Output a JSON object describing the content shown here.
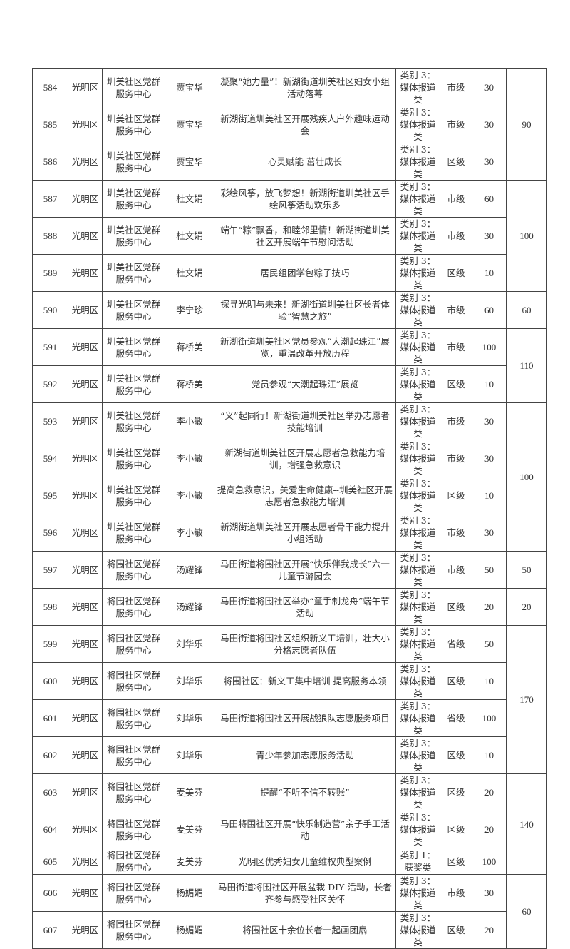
{
  "groups": [
    {
      "total": "90",
      "rows": [
        {
          "no": "584",
          "district": "光明区",
          "center": "圳美社区党群服务中心",
          "person": "贾宝华",
          "title": "凝聚“她力量”！新湖街道圳美社区妇女小组活动落幕",
          "category": "类别 3：媒体报道类",
          "level": "市级",
          "score": "30"
        },
        {
          "no": "585",
          "district": "光明区",
          "center": "圳美社区党群服务中心",
          "person": "贾宝华",
          "title": "新湖街道圳美社区开展残疾人户外趣味运动会",
          "category": "类别 3：媒体报道类",
          "level": "市级",
          "score": "30"
        },
        {
          "no": "586",
          "district": "光明区",
          "center": "圳美社区党群服务中心",
          "person": "贾宝华",
          "title": "心灵赋能 茁壮成长",
          "category": "类别 3：媒体报道类",
          "level": "区级",
          "score": "30"
        }
      ]
    },
    {
      "total": "100",
      "rows": [
        {
          "no": "587",
          "district": "光明区",
          "center": "圳美社区党群服务中心",
          "person": "杜文娟",
          "title": "彩绘风筝，放飞梦想！新湖街道圳美社区手绘风筝活动欢乐多",
          "category": "类别 3：媒体报道类",
          "level": "市级",
          "score": "60"
        },
        {
          "no": "588",
          "district": "光明区",
          "center": "圳美社区党群服务中心",
          "person": "杜文娟",
          "title": "端午“粽”飘香，和睦邻里情！新湖街道圳美社区开展端午节慰问活动",
          "category": "类别 3：媒体报道类",
          "level": "市级",
          "score": "30"
        },
        {
          "no": "589",
          "district": "光明区",
          "center": "圳美社区党群服务中心",
          "person": "杜文娟",
          "title": "居民组团学包粽子技巧",
          "category": "类别 3：媒体报道类",
          "level": "区级",
          "score": "10"
        }
      ]
    },
    {
      "total": "60",
      "rows": [
        {
          "no": "590",
          "district": "光明区",
          "center": "圳美社区党群服务中心",
          "person": "李宁珍",
          "title": "探寻光明与未来！新湖街道圳美社区长者体验“智慧之旅”",
          "category": "类别 3：媒体报道类",
          "level": "市级",
          "score": "60"
        }
      ]
    },
    {
      "total": "110",
      "rows": [
        {
          "no": "591",
          "district": "光明区",
          "center": "圳美社区党群服务中心",
          "person": "蒋桥美",
          "title": "新湖街道圳美社区党员参观“大潮起珠江”展览，重温改革开放历程",
          "category": "类别 3：媒体报道类",
          "level": "市级",
          "score": "100"
        },
        {
          "no": "592",
          "district": "光明区",
          "center": "圳美社区党群服务中心",
          "person": "蒋桥美",
          "title": "党员参观“大潮起珠江”展览",
          "category": "类别 3：媒体报道类",
          "level": "区级",
          "score": "10"
        }
      ]
    },
    {
      "total": "100",
      "rows": [
        {
          "no": "593",
          "district": "光明区",
          "center": "圳美社区党群服务中心",
          "person": "李小敏",
          "title": "“义”起同行！新湖街道圳美社区举办志愿者技能培训",
          "category": "类别 3：媒体报道类",
          "level": "市级",
          "score": "30"
        },
        {
          "no": "594",
          "district": "光明区",
          "center": "圳美社区党群服务中心",
          "person": "李小敏",
          "title": "新湖街道圳美社区开展志愿者急救能力培训，增强急救意识",
          "category": "类别 3：媒体报道类",
          "level": "市级",
          "score": "30"
        },
        {
          "no": "595",
          "district": "光明区",
          "center": "圳美社区党群服务中心",
          "person": "李小敏",
          "title": "提高急救意识，关爱生命健康--圳美社区开展志愿者急救能力培训",
          "category": "类别 3：媒体报道类",
          "level": "区级",
          "score": "10"
        },
        {
          "no": "596",
          "district": "光明区",
          "center": "圳美社区党群服务中心",
          "person": "李小敏",
          "title": "新湖街道圳美社区开展志愿者骨干能力提升小组活动",
          "category": "类别 3：媒体报道类",
          "level": "市级",
          "score": "30"
        }
      ]
    },
    {
      "total": "50",
      "rows": [
        {
          "no": "597",
          "district": "光明区",
          "center": "将围社区党群服务中心",
          "person": "汤耀锋",
          "title": "马田街道将围社区开展“快乐伴我成长”六一儿童节游园会",
          "category": "类别 3：媒体报道类",
          "level": "市级",
          "score": "50"
        }
      ]
    },
    {
      "total": "20",
      "rows": [
        {
          "no": "598",
          "district": "光明区",
          "center": "将围社区党群服务中心",
          "person": "汤耀锋",
          "title": "马田街道将围社区举办“童手制龙舟”端午节活动",
          "category": "类别 3：媒体报道类",
          "level": "区级",
          "score": "20"
        }
      ]
    },
    {
      "total": "170",
      "rows": [
        {
          "no": "599",
          "district": "光明区",
          "center": "将围社区党群服务中心",
          "person": "刘华乐",
          "title": "马田街道将围社区组织新义工培训，壮大小分格志愿者队伍",
          "category": "类别 3：媒体报道类",
          "level": "省级",
          "score": "50"
        },
        {
          "no": "600",
          "district": "光明区",
          "center": "将围社区党群服务中心",
          "person": "刘华乐",
          "title": "将围社区：新义工集中培训 提高服务本领",
          "category": "类别 3：媒体报道类",
          "level": "区级",
          "score": "10"
        },
        {
          "no": "601",
          "district": "光明区",
          "center": "将围社区党群服务中心",
          "person": "刘华乐",
          "title": "马田街道将围社区开展战狼队志愿服务项目",
          "category": "类别 3：媒体报道类",
          "level": "省级",
          "score": "100"
        },
        {
          "no": "602",
          "district": "光明区",
          "center": "将围社区党群服务中心",
          "person": "刘华乐",
          "title": "青少年参加志愿服务活动",
          "category": "类别 3：媒体报道类",
          "level": "区级",
          "score": "10"
        }
      ]
    },
    {
      "total": "140",
      "rows": [
        {
          "no": "603",
          "district": "光明区",
          "center": "将围社区党群服务中心",
          "person": "麦美芬",
          "title": "提醒“不听不信不转账”",
          "category": "类别 3：媒体报道类",
          "level": "区级",
          "score": "20"
        },
        {
          "no": "604",
          "district": "光明区",
          "center": "将围社区党群服务中心",
          "person": "麦美芬",
          "title": "马田将围社区开展“快乐制造营”亲子手工活动",
          "category": "类别 3：媒体报道类",
          "level": "区级",
          "score": "20"
        },
        {
          "no": "605",
          "district": "光明区",
          "center": "将围社区党群服务中心",
          "person": "麦美芬",
          "title": "光明区优秀妇女儿童维权典型案例",
          "category": "类别 1：获奖类",
          "level": "区级",
          "score": "100"
        }
      ]
    },
    {
      "total": "60",
      "rows": [
        {
          "no": "606",
          "district": "光明区",
          "center": "将围社区党群服务中心",
          "person": "杨媚媚",
          "title": "马田街道将围社区开展盆栽 DIY 活动，长者齐参与感受社区关怀",
          "category": "类别 3：媒体报道类",
          "level": "市级",
          "score": "30"
        },
        {
          "no": "607",
          "district": "光明区",
          "center": "将围社区党群服务中心",
          "person": "杨媚媚",
          "title": "将围社区十余位长者一起画团扇",
          "category": "类别 3：媒体报道类",
          "level": "区级",
          "score": "20"
        }
      ]
    }
  ]
}
